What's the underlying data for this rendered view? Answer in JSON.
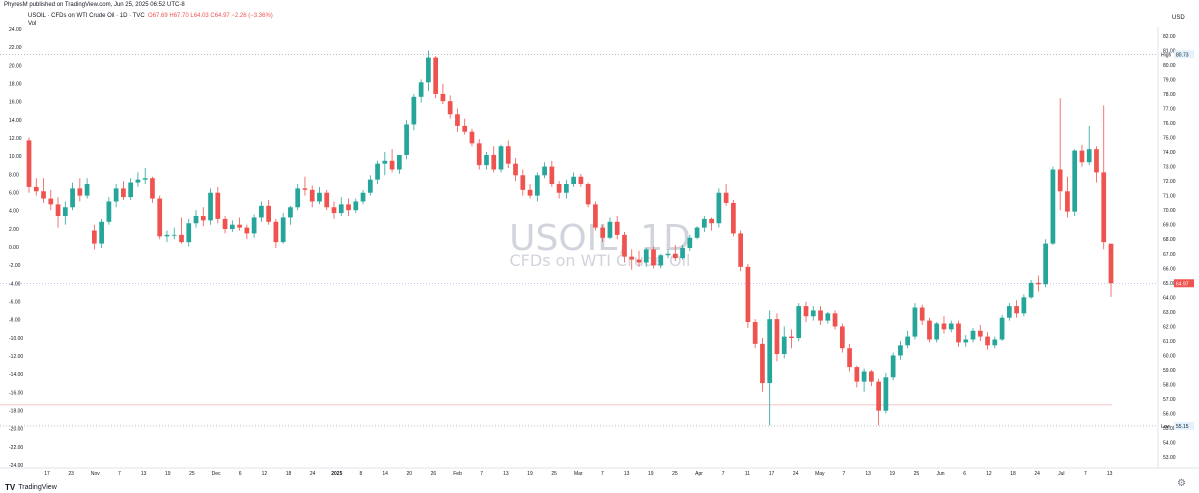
{
  "header": {
    "published": "PhyresM published on TradingView.com, Jun 25, 2025 06:52 UTC-8",
    "symbol_line": "USOIL · CFDs on WTI Crude Oil · 1D · TVC",
    "ohlc": "O67.69 H67.70 L64.03 C64.97 −2.26 (−3.36%)",
    "vol": "Vol"
  },
  "footer": {
    "brand": "TradingView",
    "logo": "TV"
  },
  "currency_label": "USD",
  "chart_data": {
    "type": "candlestick",
    "watermark_symbol": "USOIL, 1D",
    "watermark_desc": "CFDs on WTI Crude Oil",
    "left_axis": {
      "ticks": [
        "24.00",
        "22.00",
        "20.00",
        "18.00",
        "16.00",
        "14.00",
        "12.00",
        "10.00",
        "8.00",
        "6.00",
        "4.00",
        "2.00",
        "0.00",
        "-2.00",
        "-4.00",
        "-6.00",
        "-8.00",
        "-10.00",
        "-12.00",
        "-14.00",
        "-16.00",
        "-18.00",
        "-20.00",
        "-22.00",
        "-24.00"
      ]
    },
    "right_axis": {
      "ticks": [
        "82.00",
        "81.00",
        "80.00",
        "79.00",
        "78.00",
        "77.00",
        "76.00",
        "75.00",
        "74.00",
        "73.00",
        "72.00",
        "71.00",
        "70.00",
        "69.00",
        "68.00",
        "67.00",
        "66.00",
        "65.00",
        "64.00",
        "63.00",
        "62.00",
        "61.00",
        "60.00",
        "59.00",
        "58.00",
        "57.00",
        "56.00",
        "55.00",
        "54.00",
        "53.00"
      ],
      "ylim": [
        52.6,
        82.4
      ]
    },
    "x_axis": {
      "labels": [
        "17",
        "23",
        "Nov",
        "7",
        "13",
        "19",
        "25",
        "Dec",
        "6",
        "12",
        "18",
        "24",
        "2025",
        "8",
        "14",
        "20",
        "26",
        "Feb",
        "7",
        "13",
        "19",
        "25",
        "Mar",
        "7",
        "13",
        "19",
        "25",
        "Apr",
        "7",
        "11",
        "17",
        "24",
        "May",
        "7",
        "13",
        "19",
        "25",
        "Jun",
        "6",
        "12",
        "18",
        "24",
        "Jul",
        "7",
        "13"
      ]
    },
    "high": {
      "label": "High",
      "value": 80.73
    },
    "low": {
      "label": "Low",
      "value": 55.15
    },
    "last_price": 64.97,
    "reference_level": 56.6,
    "colors": {
      "up": "#26a69a",
      "down": "#ef5350",
      "price_line": "#ef5350",
      "high_low_line": "#9598a1"
    },
    "candles": [
      [
        74.8,
        75.0,
        71.2,
        71.6
      ],
      [
        71.6,
        72.2,
        71.0,
        71.3
      ],
      [
        71.3,
        72.2,
        70.5,
        70.8
      ],
      [
        70.8,
        71.4,
        70.0,
        70.4
      ],
      [
        70.4,
        70.9,
        68.8,
        69.6
      ],
      [
        69.6,
        70.6,
        69.0,
        70.2
      ],
      [
        70.2,
        71.9,
        70.0,
        71.5
      ],
      [
        71.5,
        72.2,
        70.6,
        71.0
      ],
      [
        71.0,
        72.2,
        70.8,
        71.8
      ],
      [
        68.6,
        69.0,
        67.3,
        67.7
      ],
      [
        67.7,
        69.4,
        67.4,
        69.2
      ],
      [
        69.2,
        70.9,
        69.0,
        70.6
      ],
      [
        70.6,
        71.8,
        70.2,
        71.5
      ],
      [
        71.5,
        72.0,
        70.7,
        70.9
      ],
      [
        70.9,
        72.2,
        70.7,
        71.9
      ],
      [
        71.9,
        72.6,
        71.6,
        72.1
      ],
      [
        72.1,
        72.9,
        71.8,
        72.2
      ],
      [
        72.2,
        72.3,
        70.5,
        70.8
      ],
      [
        70.8,
        71.0,
        68.0,
        68.2
      ],
      [
        68.2,
        68.6,
        67.8,
        68.3
      ],
      [
        68.3,
        68.8,
        68.0,
        68.3
      ],
      [
        68.3,
        69.5,
        67.7,
        67.8
      ],
      [
        67.8,
        69.4,
        67.5,
        69.1
      ],
      [
        69.1,
        70.0,
        68.8,
        69.6
      ],
      [
        69.6,
        70.2,
        68.9,
        69.3
      ],
      [
        69.3,
        71.5,
        69.0,
        71.2
      ],
      [
        71.2,
        71.6,
        69.1,
        69.4
      ],
      [
        69.4,
        69.6,
        68.4,
        68.7
      ],
      [
        68.7,
        69.3,
        68.5,
        69.0
      ],
      [
        69.0,
        69.5,
        68.6,
        68.8
      ],
      [
        68.8,
        69.0,
        68.0,
        68.4
      ],
      [
        68.4,
        69.7,
        68.1,
        69.5
      ],
      [
        69.5,
        70.6,
        69.2,
        70.3
      ],
      [
        70.3,
        70.7,
        69.0,
        69.2
      ],
      [
        69.2,
        69.4,
        67.4,
        67.8
      ],
      [
        67.8,
        69.8,
        67.7,
        69.5
      ],
      [
        69.5,
        70.3,
        69.0,
        70.2
      ],
      [
        70.2,
        71.8,
        70.0,
        71.5
      ],
      [
        71.5,
        72.3,
        71.0,
        71.4
      ],
      [
        71.4,
        71.7,
        70.2,
        70.6
      ],
      [
        70.6,
        71.6,
        70.4,
        71.2
      ],
      [
        71.2,
        71.4,
        70.0,
        70.2
      ],
      [
        70.2,
        70.6,
        69.4,
        69.8
      ],
      [
        69.8,
        70.9,
        69.6,
        70.4
      ],
      [
        70.4,
        70.8,
        69.6,
        70.0
      ],
      [
        70.0,
        70.8,
        69.8,
        70.6
      ],
      [
        70.6,
        71.4,
        70.4,
        71.2
      ],
      [
        71.2,
        72.4,
        71.0,
        72.1
      ],
      [
        72.1,
        73.4,
        71.8,
        73.2
      ],
      [
        73.2,
        74.0,
        72.4,
        73.4
      ],
      [
        73.4,
        74.2,
        72.6,
        72.8
      ],
      [
        72.8,
        73.8,
        72.5,
        73.8
      ],
      [
        73.8,
        76.2,
        73.5,
        75.9
      ],
      [
        75.9,
        78.0,
        75.5,
        77.8
      ],
      [
        77.8,
        79.0,
        77.4,
        78.8
      ],
      [
        78.8,
        81.0,
        78.2,
        80.5
      ],
      [
        80.5,
        80.6,
        77.7,
        78.0
      ],
      [
        78.0,
        78.7,
        77.3,
        77.5
      ],
      [
        77.5,
        77.9,
        76.3,
        76.6
      ],
      [
        76.6,
        77.0,
        75.4,
        75.8
      ],
      [
        75.8,
        76.3,
        75.2,
        75.4
      ],
      [
        75.4,
        75.6,
        74.4,
        74.6
      ],
      [
        74.6,
        74.9,
        72.8,
        73.1
      ],
      [
        73.1,
        74.0,
        72.8,
        73.8
      ],
      [
        73.8,
        74.4,
        72.6,
        72.8
      ],
      [
        72.8,
        74.5,
        72.6,
        74.4
      ],
      [
        74.4,
        74.8,
        72.9,
        73.2
      ],
      [
        73.2,
        73.6,
        72.0,
        72.4
      ],
      [
        72.4,
        72.8,
        71.0,
        71.4
      ],
      [
        71.4,
        71.8,
        70.8,
        71.0
      ],
      [
        71.0,
        72.6,
        70.6,
        72.4
      ],
      [
        72.4,
        73.3,
        72.2,
        73.0
      ],
      [
        73.0,
        73.4,
        71.6,
        71.8
      ],
      [
        71.8,
        72.0,
        70.8,
        71.2
      ],
      [
        71.2,
        72.1,
        70.8,
        71.8
      ],
      [
        71.8,
        72.6,
        71.6,
        72.3
      ],
      [
        72.3,
        72.5,
        71.6,
        71.8
      ],
      [
        71.8,
        71.9,
        70.2,
        70.4
      ],
      [
        70.4,
        70.6,
        68.6,
        68.8
      ],
      [
        68.8,
        69.0,
        67.8,
        68.1
      ],
      [
        68.1,
        69.5,
        68.0,
        69.2
      ],
      [
        69.2,
        69.6,
        68.0,
        68.3
      ],
      [
        68.3,
        68.5,
        66.4,
        66.8
      ],
      [
        66.8,
        67.3,
        65.9,
        66.6
      ],
      [
        66.6,
        67.2,
        66.1,
        66.4
      ],
      [
        66.4,
        67.4,
        66.1,
        67.3
      ],
      [
        67.3,
        67.5,
        66.0,
        66.2
      ],
      [
        66.2,
        67.0,
        66.0,
        66.9
      ],
      [
        66.9,
        67.3,
        66.7,
        67.0
      ],
      [
        67.0,
        67.6,
        66.5,
        66.7
      ],
      [
        66.7,
        67.6,
        66.6,
        67.4
      ],
      [
        67.4,
        68.3,
        67.2,
        68.1
      ],
      [
        68.1,
        68.9,
        68.0,
        68.8
      ],
      [
        68.8,
        69.6,
        68.5,
        69.4
      ],
      [
        69.4,
        69.5,
        68.6,
        69.1
      ],
      [
        69.1,
        71.5,
        68.8,
        71.2
      ],
      [
        71.2,
        71.8,
        70.3,
        70.5
      ],
      [
        70.5,
        70.7,
        68.2,
        68.4
      ],
      [
        68.4,
        68.6,
        65.8,
        66.1
      ],
      [
        66.1,
        66.3,
        61.9,
        62.3
      ],
      [
        62.3,
        62.5,
        60.5,
        60.8
      ],
      [
        60.8,
        61.2,
        57.5,
        58.1
      ],
      [
        58.1,
        63.1,
        55.2,
        62.5
      ],
      [
        62.5,
        62.9,
        59.6,
        60.1
      ],
      [
        60.1,
        62.0,
        59.8,
        61.3
      ],
      [
        61.3,
        61.8,
        60.5,
        61.2
      ],
      [
        61.2,
        63.6,
        61.0,
        63.4
      ],
      [
        63.4,
        63.7,
        62.3,
        62.7
      ],
      [
        62.7,
        63.4,
        62.4,
        63.1
      ],
      [
        63.1,
        63.4,
        62.1,
        62.4
      ],
      [
        62.4,
        63.0,
        62.2,
        62.9
      ],
      [
        62.9,
        63.1,
        61.8,
        62.0
      ],
      [
        62.0,
        62.2,
        60.2,
        60.5
      ],
      [
        60.5,
        60.8,
        58.9,
        59.2
      ],
      [
        59.2,
        59.3,
        57.8,
        58.2
      ],
      [
        58.2,
        59.1,
        57.5,
        58.9
      ],
      [
        58.9,
        59.0,
        57.9,
        58.2
      ],
      [
        58.2,
        58.4,
        55.2,
        56.2
      ],
      [
        56.2,
        58.8,
        56.0,
        58.5
      ],
      [
        58.5,
        60.2,
        58.3,
        60.0
      ],
      [
        60.0,
        61.0,
        59.7,
        60.7
      ],
      [
        60.7,
        61.7,
        60.5,
        61.3
      ],
      [
        61.3,
        63.6,
        61.1,
        63.3
      ],
      [
        63.3,
        63.5,
        62.1,
        62.4
      ],
      [
        62.4,
        62.6,
        60.9,
        61.1
      ],
      [
        61.1,
        62.3,
        60.9,
        62.2
      ],
      [
        62.2,
        62.7,
        61.5,
        61.8
      ],
      [
        61.8,
        62.4,
        61.6,
        62.2
      ],
      [
        62.2,
        62.4,
        60.6,
        60.9
      ],
      [
        60.9,
        61.4,
        60.6,
        61.1
      ],
      [
        61.1,
        61.9,
        60.9,
        61.7
      ],
      [
        61.7,
        62.1,
        61.0,
        61.3
      ],
      [
        61.3,
        61.6,
        60.4,
        60.7
      ],
      [
        60.7,
        61.3,
        60.5,
        61.1
      ],
      [
        61.1,
        62.8,
        61.0,
        62.6
      ],
      [
        62.6,
        63.6,
        62.4,
        63.4
      ],
      [
        63.4,
        63.8,
        62.6,
        62.9
      ],
      [
        62.9,
        64.2,
        62.7,
        64.0
      ],
      [
        64.0,
        65.2,
        63.9,
        65.0
      ],
      [
        65.0,
        65.5,
        64.4,
        64.9
      ],
      [
        64.9,
        68.0,
        64.7,
        67.7
      ],
      [
        67.7,
        73.0,
        67.6,
        72.8
      ],
      [
        72.8,
        77.7,
        70.0,
        71.3
      ],
      [
        71.3,
        72.3,
        69.5,
        69.9
      ],
      [
        69.9,
        74.2,
        69.6,
        74.1
      ],
      [
        74.1,
        74.5,
        73.0,
        73.3
      ],
      [
        73.3,
        75.8,
        73.1,
        74.2
      ],
      [
        74.2,
        74.4,
        71.9,
        72.6
      ],
      [
        72.6,
        77.2,
        67.3,
        67.8
      ],
      [
        67.69,
        67.7,
        64.03,
        64.97
      ]
    ]
  }
}
